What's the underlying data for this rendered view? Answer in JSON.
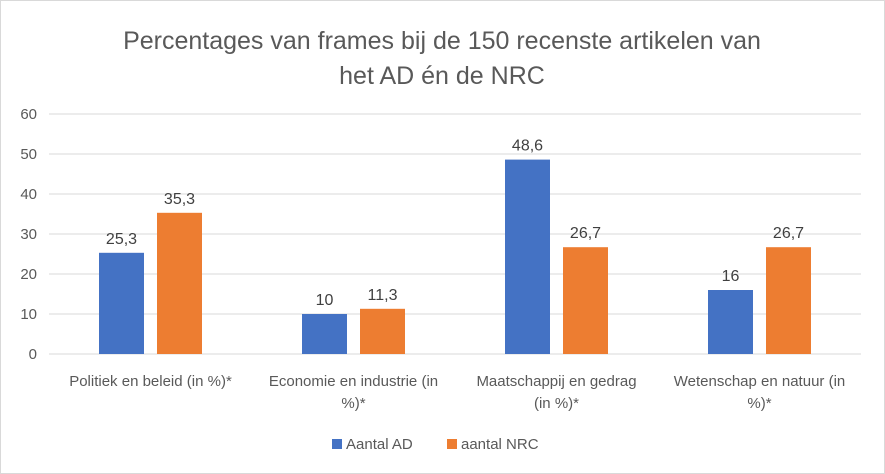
{
  "chart_data": {
    "type": "bar",
    "title_lines": [
      "Percentages van frames bij de 150 recenste artikelen van",
      "het AD én de NRC"
    ],
    "categories": [
      [
        "Politiek en beleid (in %)*"
      ],
      [
        "Economie en industrie (in",
        "%)*"
      ],
      [
        "Maatschappij en gedrag",
        "(in %)*"
      ],
      [
        "Wetenschap en natuur (in",
        "%)*"
      ]
    ],
    "series": [
      {
        "name": "Aantal AD",
        "color": "#4472c4",
        "values": [
          25.3,
          10,
          48.6,
          16
        ],
        "labels": [
          "25,3",
          "10",
          "48,6",
          "16"
        ]
      },
      {
        "name": "aantal NRC",
        "color": "#ed7d31",
        "values": [
          35.3,
          11.3,
          26.7,
          26.7
        ],
        "labels": [
          "35,3",
          "11,3",
          "26,7",
          "26,7"
        ]
      }
    ],
    "ylim": [
      0,
      60
    ],
    "yticks": [
      0,
      10,
      20,
      30,
      40,
      50,
      60
    ],
    "grid": true,
    "legend_position": "bottom",
    "xlabel": "",
    "ylabel": ""
  },
  "colors": {
    "gridline": "#d9d9d9",
    "text": "#595959"
  }
}
